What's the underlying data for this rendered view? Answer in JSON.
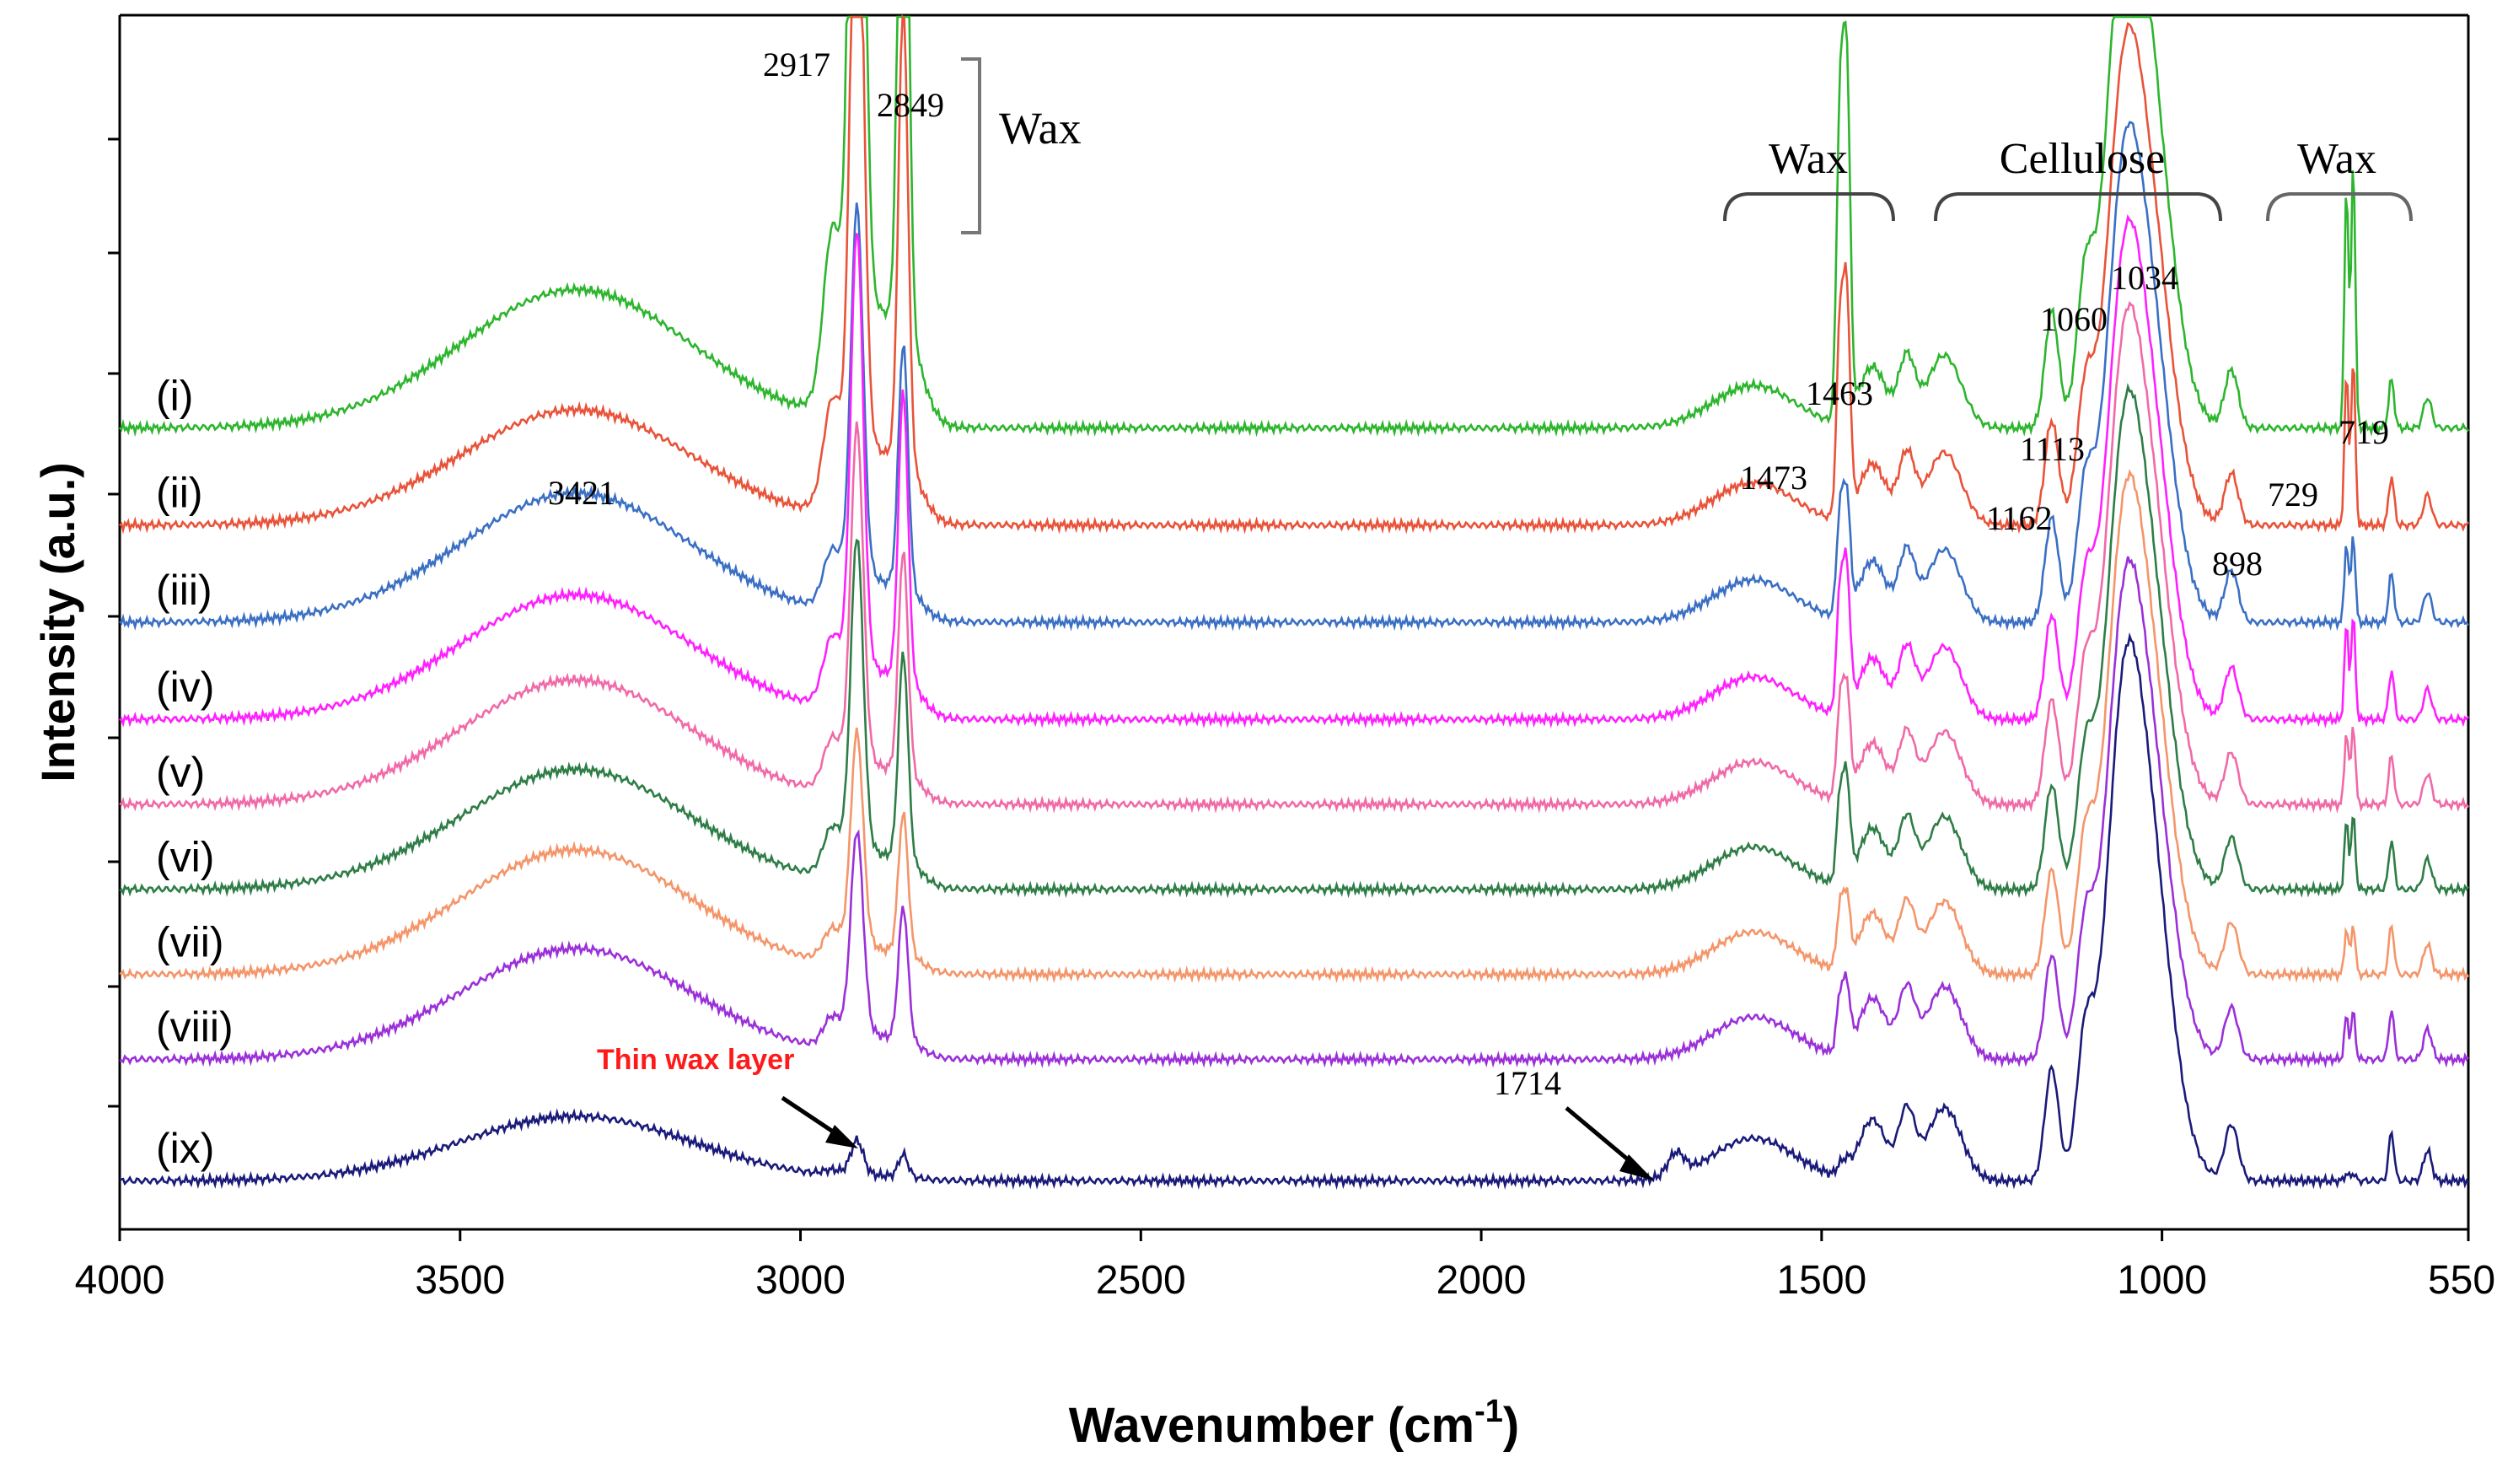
{
  "chart_data": {
    "type": "line",
    "title": "",
    "xlabel": "Wavenumber (cm",
    "xlabel_sup": "-1",
    "xlabel_close": ")",
    "ylabel": "Intensity (a.u.)",
    "xlim": [
      4000,
      550
    ],
    "x_ticks": [
      4000,
      3500,
      3000,
      2500,
      2000,
      1500,
      1000,
      550
    ],
    "series": [
      {
        "name": "(i)",
        "color": "#2db52d",
        "offset": 0.66,
        "wax": 1.0,
        "cell": 0.95,
        "water": 0.3
      },
      {
        "name": "(ii)",
        "color": "#e8533a",
        "offset": 0.58,
        "wax": 0.62,
        "cell": 0.85,
        "water": 0.25
      },
      {
        "name": "(iii)",
        "color": "#3a6fc4",
        "offset": 0.5,
        "wax": 0.33,
        "cell": 0.85,
        "water": 0.28
      },
      {
        "name": "(iv)",
        "color": "#ff20ff",
        "offset": 0.42,
        "wax": 0.39,
        "cell": 0.85,
        "water": 0.27
      },
      {
        "name": "(v)",
        "color": "#f06aa8",
        "offset": 0.35,
        "wax": 0.3,
        "cell": 0.85,
        "water": 0.27
      },
      {
        "name": "(vi)",
        "color": "#2e7d46",
        "offset": 0.28,
        "wax": 0.28,
        "cell": 0.85,
        "water": 0.26
      },
      {
        "name": "(vii)",
        "color": "#f4956a",
        "offset": 0.21,
        "wax": 0.19,
        "cell": 0.85,
        "water": 0.27
      },
      {
        "name": "(viii)",
        "color": "#9b30d9",
        "offset": 0.14,
        "wax": 0.18,
        "cell": 0.85,
        "water": 0.24
      },
      {
        "name": "(ix)",
        "color": "#1a1a7a",
        "offset": 0.04,
        "wax": 0.03,
        "cell": 0.92,
        "water": 0.14
      }
    ],
    "peak_labels": [
      "2917",
      "2849",
      "3421",
      "1463",
      "1473",
      "1113",
      "1162",
      "1060",
      "1034",
      "898",
      "729",
      "719",
      "1714"
    ],
    "region_labels": {
      "wax_top": "Wax",
      "wax_mid": "Wax",
      "cellulose": "Cellulose",
      "wax_right": "Wax"
    },
    "annotations": {
      "thin_wax": "Thin wax layer",
      "peak_1714": "1714"
    }
  }
}
